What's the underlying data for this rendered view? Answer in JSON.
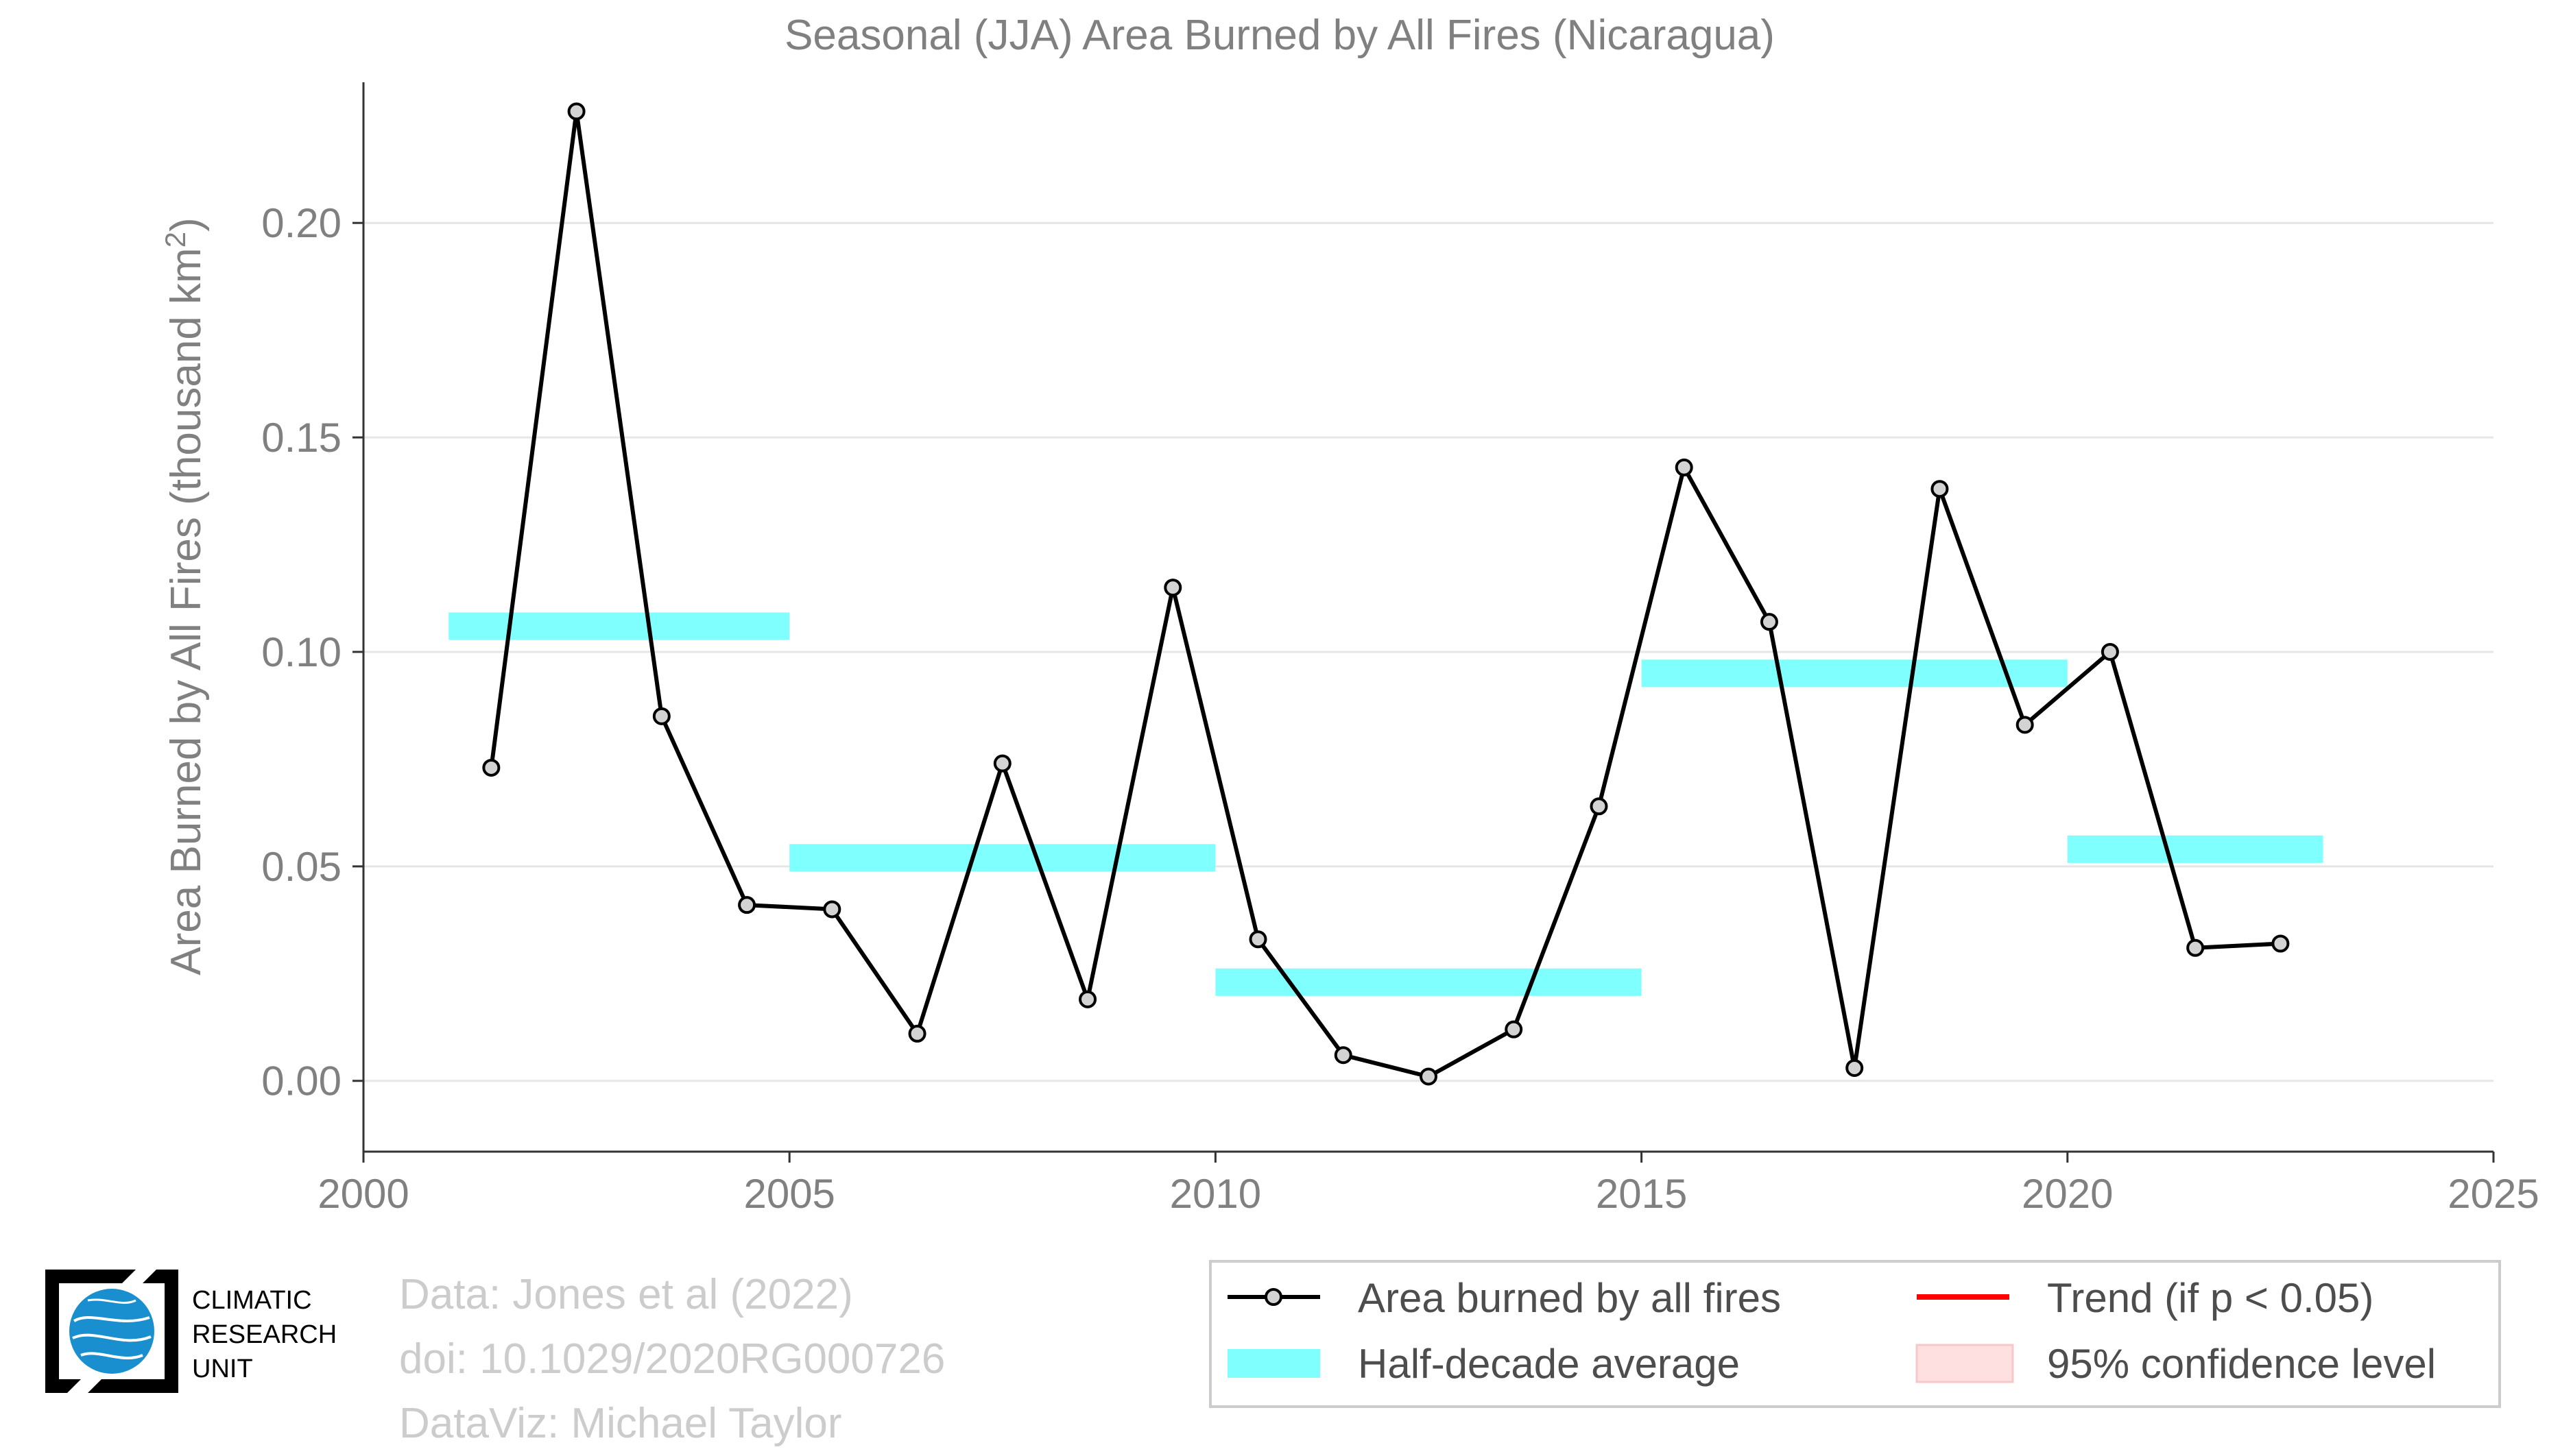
{
  "chart_data": {
    "type": "line",
    "title": "Seasonal (JJA) Area Burned by All Fires (Nicaragua)",
    "xlabel": "",
    "ylabel": "Area Burned by All Fires (thousand km",
    "ylabel_superscript": "2",
    "ylabel_close": ")",
    "xlim": [
      2000,
      2025
    ],
    "ylim": [
      -0.0165,
      0.228
    ],
    "xticks": [
      "2000",
      "2005",
      "2010",
      "2015",
      "2020",
      "2025"
    ],
    "yticks": [
      "0.00",
      "0.05",
      "0.10",
      "0.15",
      "0.20"
    ],
    "grid": true,
    "series": [
      {
        "name": "Area burned by all fires",
        "color": "#000000",
        "marker_fill": "#d3d3d3",
        "points": [
          {
            "x": 2001.5,
            "y": 0.073
          },
          {
            "x": 2002.5,
            "y": 0.226
          },
          {
            "x": 2003.5,
            "y": 0.085
          },
          {
            "x": 2004.5,
            "y": 0.041
          },
          {
            "x": 2005.5,
            "y": 0.04
          },
          {
            "x": 2006.5,
            "y": 0.011
          },
          {
            "x": 2007.5,
            "y": 0.074
          },
          {
            "x": 2008.5,
            "y": 0.019
          },
          {
            "x": 2009.5,
            "y": 0.115
          },
          {
            "x": 2010.5,
            "y": 0.033
          },
          {
            "x": 2011.5,
            "y": 0.006
          },
          {
            "x": 2012.5,
            "y": 0.001
          },
          {
            "x": 2013.5,
            "y": 0.012
          },
          {
            "x": 2014.5,
            "y": 0.064
          },
          {
            "x": 2015.5,
            "y": 0.143
          },
          {
            "x": 2016.5,
            "y": 0.107
          },
          {
            "x": 2017.5,
            "y": 0.003
          },
          {
            "x": 2018.5,
            "y": 0.138
          },
          {
            "x": 2019.5,
            "y": 0.083
          },
          {
            "x": 2020.5,
            "y": 0.1
          },
          {
            "x": 2021.5,
            "y": 0.031
          },
          {
            "x": 2022.5,
            "y": 0.032
          }
        ]
      },
      {
        "name": "Half-decade average",
        "color": "#80ffff",
        "segments": [
          {
            "x0": 2001,
            "x1": 2005,
            "y": 0.106
          },
          {
            "x0": 2005,
            "x1": 2010,
            "y": 0.052
          },
          {
            "x0": 2010,
            "x1": 2015,
            "y": 0.023
          },
          {
            "x0": 2015,
            "x1": 2020,
            "y": 0.095
          },
          {
            "x0": 2020,
            "x1": 2023,
            "y": 0.054
          }
        ]
      }
    ],
    "legend": {
      "placement": "bottom-right",
      "items": [
        {
          "label": "Area burned by all fires",
          "kind": "line-marker",
          "color": "#000000"
        },
        {
          "label": "Trend (if p < 0.05)",
          "kind": "line",
          "color": "#ff0000"
        },
        {
          "label": "Half-decade average",
          "kind": "band",
          "color": "#80ffff"
        },
        {
          "label": "95% confidence level",
          "kind": "band",
          "color": "#ffe0e0"
        }
      ]
    }
  },
  "credits": {
    "line1": "Data: Jones et al (2022)",
    "line2": "doi: 10.1029/2020RG000726",
    "line3": "DataViz: Michael Taylor"
  },
  "logo": {
    "line1": "CLIMATIC",
    "line2": "RESEARCH",
    "line3": "UNIT",
    "color": "#1a8fd0"
  }
}
